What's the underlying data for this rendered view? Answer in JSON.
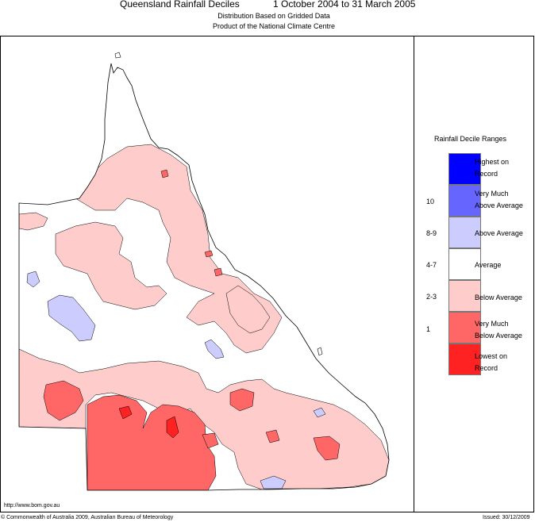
{
  "title": "Queensland Rainfall Deciles",
  "period": "1 October 2004 to 31 March 2005",
  "subtitle1": "Distribution Based on Gridded Data",
  "subtitle2": "Product of the National Climate Centre",
  "legend": {
    "title": "Rainfall Decile Ranges",
    "items": [
      {
        "code": "",
        "label1": "Highest on",
        "label2": "Record",
        "color": "#0000ff"
      },
      {
        "code": "10",
        "label1": "Very Much",
        "label2": "Above Average",
        "color": "#6666ff"
      },
      {
        "code": "8-9",
        "label1": "Above Average",
        "label2": "",
        "color": "#ccccff"
      },
      {
        "code": "4-7",
        "label1": "Average",
        "label2": "",
        "color": "#ffffff"
      },
      {
        "code": "2-3",
        "label1": "Below Average",
        "label2": "",
        "color": "#ffcccc"
      },
      {
        "code": "1",
        "label1": "Very Much",
        "label2": "Below Average",
        "color": "#ff6666"
      },
      {
        "code": "",
        "label1": "Lowest on",
        "label2": "Record",
        "color": "#ff2222"
      }
    ]
  },
  "footer": {
    "url": "http://www.bom.gov.au",
    "copyright": "© Commonwealth of Australia 2009, Australian Bureau of Meteorology",
    "issued": "Issued: 30/12/2009"
  }
}
